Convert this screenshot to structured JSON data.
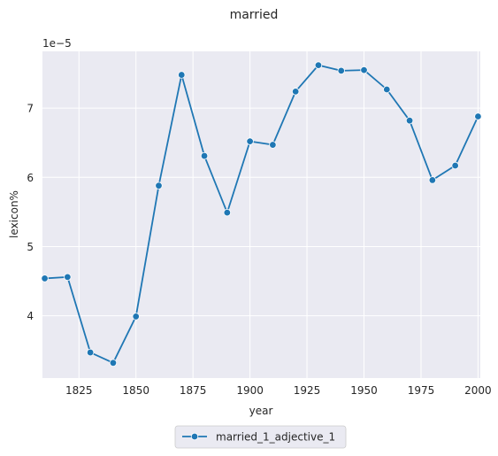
{
  "chart_data": {
    "type": "line",
    "title": "married",
    "xlabel": "year",
    "ylabel": "lexicon%",
    "y_offset_label": "1e−5",
    "xlim": [
      1809,
      2001
    ],
    "ylim": [
      3.1,
      7.82
    ],
    "x_ticks": [
      1825,
      1850,
      1875,
      1900,
      1925,
      1950,
      1975,
      2000
    ],
    "y_ticks": [
      4,
      5,
      6,
      7
    ],
    "grid": true,
    "legend_position": "bottom-center",
    "series": [
      {
        "name": "married_1_adjective_1",
        "color": "#1f77b4",
        "marker": "circle",
        "x": [
          1810,
          1820,
          1830,
          1840,
          1850,
          1860,
          1870,
          1880,
          1890,
          1900,
          1910,
          1920,
          1930,
          1940,
          1950,
          1960,
          1970,
          1980,
          1990,
          2000
        ],
        "y": [
          4.54,
          4.56,
          3.47,
          3.32,
          3.99,
          5.88,
          7.48,
          6.31,
          5.49,
          6.52,
          6.47,
          7.24,
          7.62,
          7.54,
          7.55,
          7.27,
          6.82,
          5.96,
          6.17,
          6.88
        ]
      }
    ]
  }
}
